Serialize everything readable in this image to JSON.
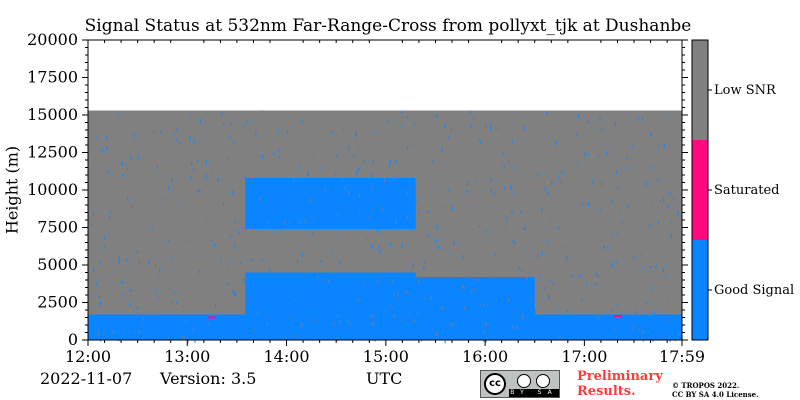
{
  "chart_data": {
    "type": "heatmap",
    "title": "Signal Status at 532nm Far-Range-Cross from pollyxt_tjk at Dushanbe",
    "xlabel": "UTC",
    "ylabel": "Height (m)",
    "xlim": [
      "12:00",
      "17:59"
    ],
    "ylim": [
      0,
      20000
    ],
    "x_ticks": [
      "12:00",
      "13:00",
      "14:00",
      "15:00",
      "16:00",
      "17:00",
      "17:59"
    ],
    "y_ticks": [
      0,
      2500,
      5000,
      7500,
      10000,
      12500,
      15000,
      17500,
      20000
    ],
    "colorbar": [
      {
        "label": "Good Signal",
        "color": "#0a84ff"
      },
      {
        "label": "Saturated",
        "color": "#ff0a80"
      },
      {
        "label": "Low SNR",
        "color": "#808080"
      }
    ],
    "max_height_with_data_m": 15300,
    "good_signal_regions": [
      {
        "from": "12:00",
        "to": "17:59",
        "bottom_m": 0,
        "top_m": 1700,
        "note": "near-surface layer"
      },
      {
        "from": "13:35",
        "to": "15:18",
        "bottom_m": 0,
        "top_m": 4500
      },
      {
        "from": "15:18",
        "to": "16:30",
        "bottom_m": 0,
        "top_m": 4200
      },
      {
        "from": "13:35",
        "to": "15:18",
        "bottom_m": 7400,
        "top_m": 10800,
        "note": "cloud layer"
      }
    ],
    "saturated_points": [
      {
        "time": "13:15",
        "height_m": 1500
      },
      {
        "time": "17:20",
        "height_m": 1600
      }
    ]
  },
  "footer": {
    "date": "2022-11-07",
    "version": "Version: 3.5",
    "preliminary_line1": "Preliminary",
    "preliminary_line2": "Results.",
    "copyright_line1": "© TROPOS 2022.",
    "copyright_line2": "CC BY SA 4.0 License.",
    "cc_text": "cc",
    "cc_strip": "BY SA"
  },
  "colors": {
    "good": "#0a84ff",
    "saturated": "#ff0a80",
    "low_snr": "#808080"
  }
}
